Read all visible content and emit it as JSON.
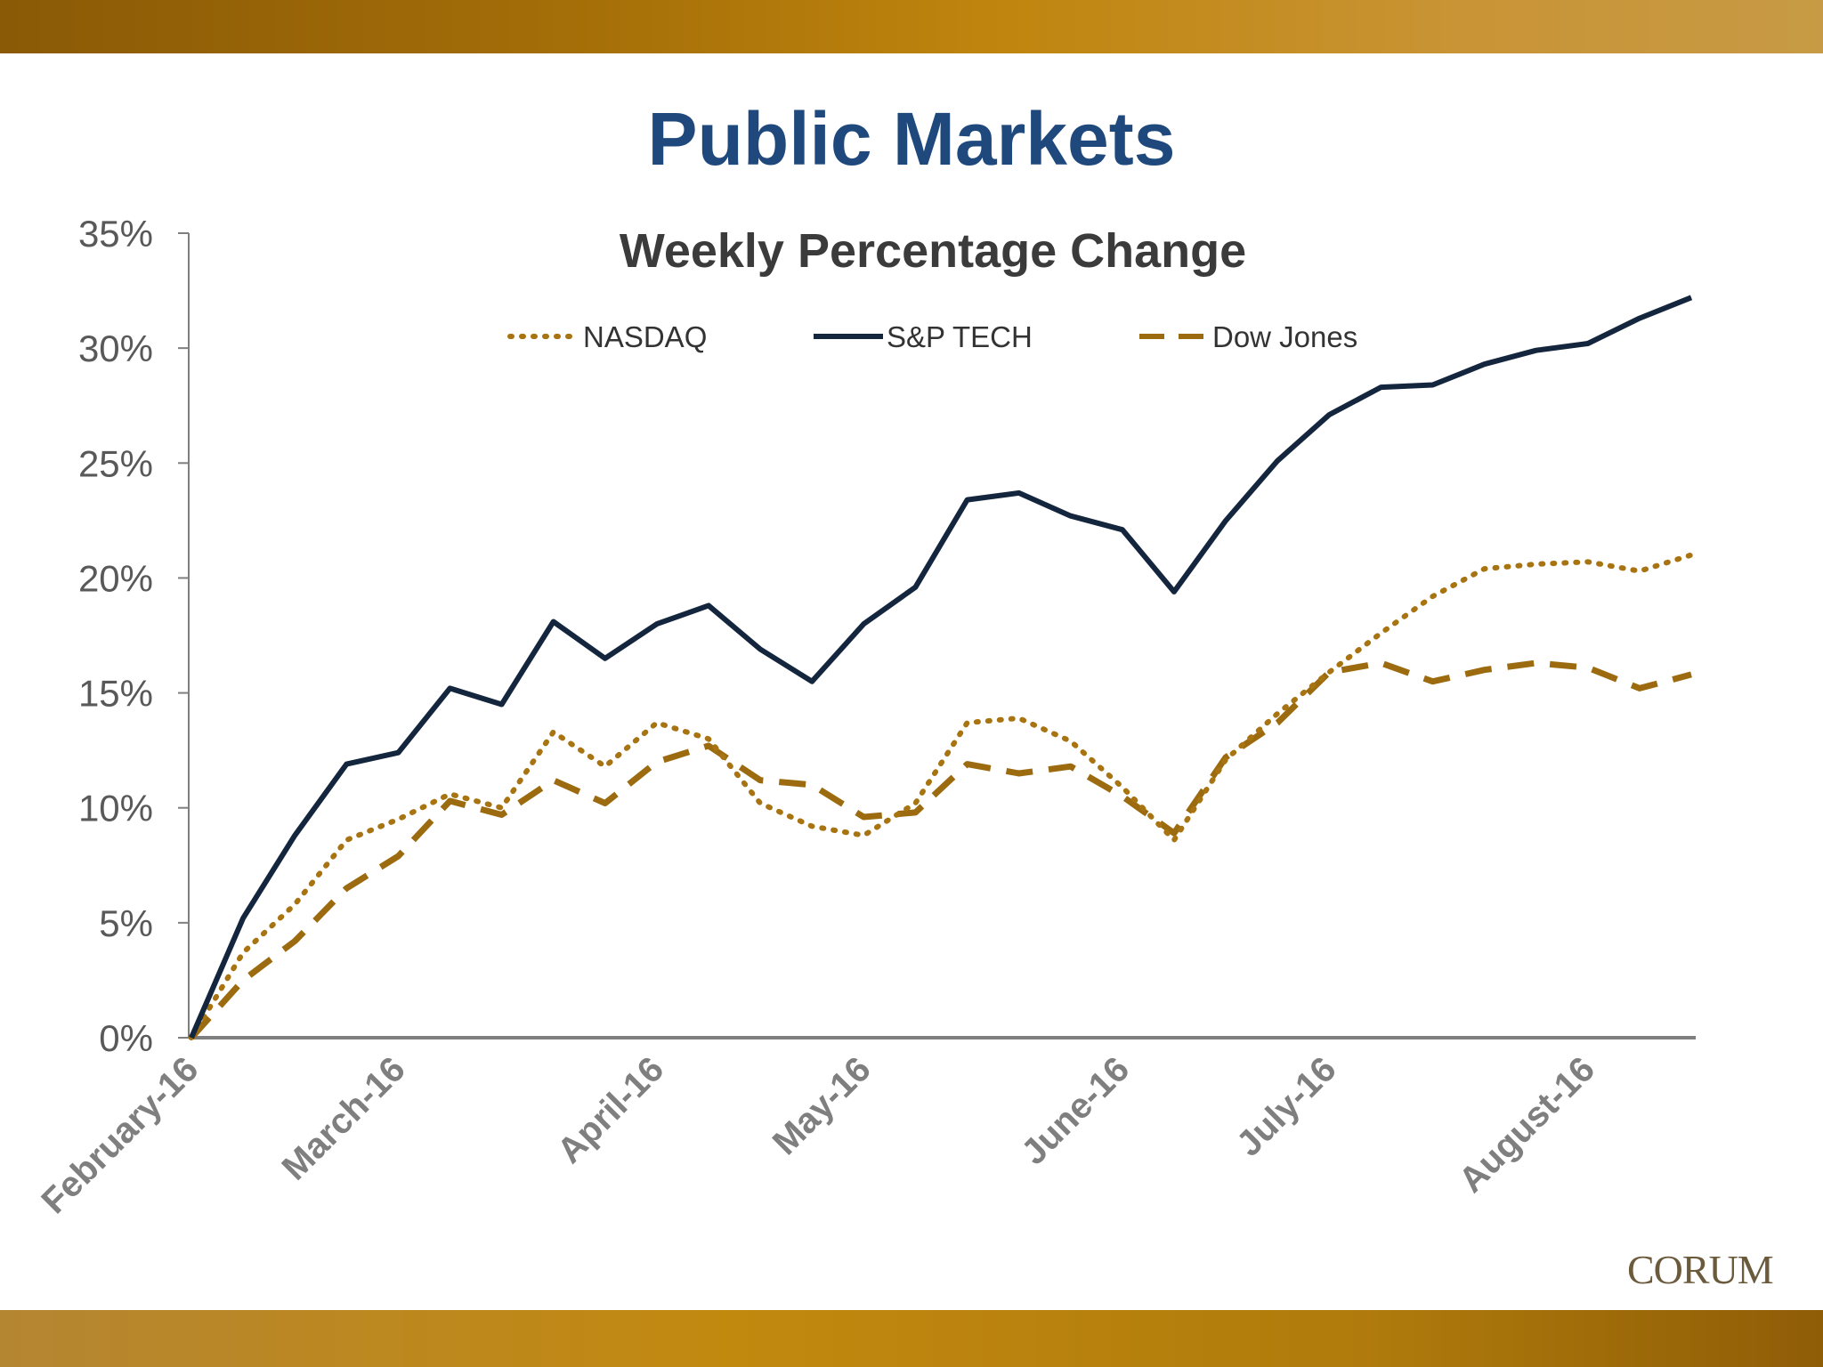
{
  "slide": {
    "title": "Public Markets",
    "logo_text": "CORUM",
    "band_color": "#b07b0c"
  },
  "chart_data": {
    "type": "line",
    "title": "Weekly Percentage Change",
    "xlabel": "",
    "ylabel": "",
    "ylim": [
      0,
      35
    ],
    "y_ticks": [
      "0%",
      "5%",
      "10%",
      "15%",
      "20%",
      "25%",
      "30%",
      "35%"
    ],
    "x_tick_labels": [
      {
        "label": "February-16",
        "index": 0
      },
      {
        "label": "March-16",
        "index": 4
      },
      {
        "label": "April-16",
        "index": 9
      },
      {
        "label": "May-16",
        "index": 13
      },
      {
        "label": "June-16",
        "index": 18
      },
      {
        "label": "July-16",
        "index": 22
      },
      {
        "label": "August-16",
        "index": 27
      }
    ],
    "legend_position": "top-center",
    "grid": false,
    "series": [
      {
        "name": "NASDAQ",
        "style": "dotted",
        "color": "#a87411",
        "values": [
          0,
          3.7,
          5.8,
          8.6,
          9.5,
          10.6,
          10.0,
          13.3,
          11.8,
          13.7,
          13.0,
          10.2,
          9.2,
          8.8,
          10.2,
          13.7,
          13.9,
          12.9,
          10.9,
          8.6,
          12.1,
          14.1,
          15.9,
          17.6,
          19.2,
          20.4,
          20.6,
          20.7,
          20.3,
          21.0
        ]
      },
      {
        "name": "S&P TECH",
        "style": "solid",
        "color": "#14253e",
        "values": [
          0,
          5.2,
          8.8,
          11.9,
          12.4,
          15.2,
          14.5,
          18.1,
          16.5,
          18.0,
          18.8,
          16.9,
          15.5,
          18.0,
          19.6,
          23.4,
          23.7,
          22.7,
          22.1,
          19.4,
          22.5,
          25.1,
          27.1,
          28.3,
          28.4,
          29.3,
          29.9,
          30.2,
          31.3,
          32.2
        ]
      },
      {
        "name": "Dow Jones",
        "style": "dashed",
        "color": "#9c6b0f",
        "values": [
          0,
          2.5,
          4.2,
          6.5,
          7.9,
          10.3,
          9.7,
          11.2,
          10.2,
          12.0,
          12.7,
          11.2,
          11.0,
          9.6,
          9.8,
          11.9,
          11.5,
          11.8,
          10.5,
          8.9,
          12.2,
          13.7,
          15.9,
          16.3,
          15.5,
          16.0,
          16.3,
          16.1,
          15.2,
          15.8
        ]
      }
    ]
  }
}
